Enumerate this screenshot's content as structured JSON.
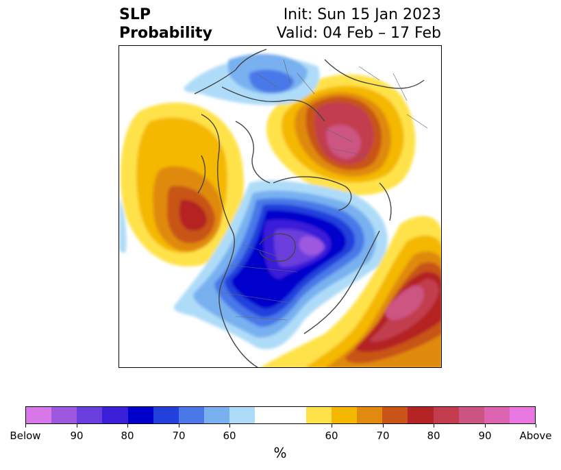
{
  "title": {
    "left_line1": "SLP",
    "left_line2": "Probability",
    "right_line1": "Init: Sun 15 Jan 2023",
    "right_line2": "Valid: 04 Feb – 17 Feb"
  },
  "map": {
    "projection": "north-polar-stereographic",
    "features": [
      {
        "name": "below-center-north-america",
        "category": "Below",
        "peak_percent": 80,
        "region": "Hudson Bay / Canada"
      },
      {
        "name": "below-pole-arctic",
        "category": "Below",
        "peak_percent": 70,
        "region": "Arctic Ocean"
      },
      {
        "name": "below-europe-north",
        "category": "Below",
        "peak_percent": 70,
        "region": "Scandinavia / Europe"
      },
      {
        "name": "above-north-pacific",
        "category": "Above",
        "peak_percent": 80,
        "region": "North Pacific"
      },
      {
        "name": "above-siberia",
        "category": "Above",
        "peak_percent": 80,
        "region": "Siberia"
      },
      {
        "name": "above-north-atlantic",
        "category": "Above",
        "peak_percent": 90,
        "region": "North Atlantic"
      }
    ]
  },
  "colorbar": {
    "unit_label": "%",
    "colors": [
      "#d878e8",
      "#9e58e0",
      "#6a3edc",
      "#3a1ed8",
      "#0000cc",
      "#2240dc",
      "#4a78e8",
      "#78b0f0",
      "#aedcf8",
      "#ffffff",
      "#ffffff",
      "#ffe24a",
      "#f4b800",
      "#e08a10",
      "#c85418",
      "#b42424",
      "#c23c4e",
      "#cc5482",
      "#dc64b0",
      "#e878e0"
    ],
    "tick_labels": [
      "Below",
      "90",
      "80",
      "70",
      "60",
      "60",
      "70",
      "80",
      "90",
      "Above"
    ]
  }
}
